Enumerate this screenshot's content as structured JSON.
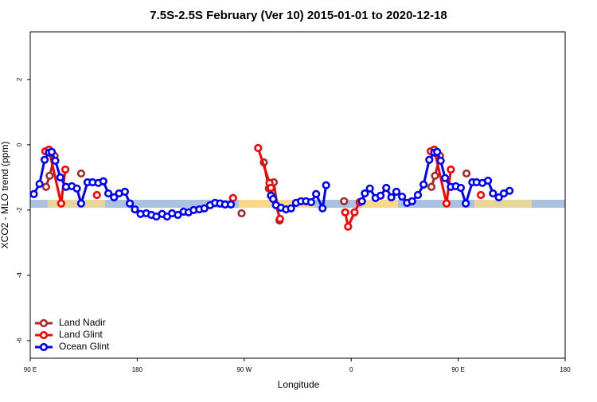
{
  "chart_data": {
    "type": "line",
    "title": "7.5S-2.5S February (Ver 10)   2015-01-01 to 2020-12-18",
    "xlabel": "Longitude",
    "ylabel": "XCO2 - MLO trend (ppm)",
    "xlim": [
      90,
      540
    ],
    "xticks": [
      {
        "value": 90,
        "label": "90 E"
      },
      {
        "value": 180,
        "label": "180"
      },
      {
        "value": 270,
        "label": "90 W"
      },
      {
        "value": 360,
        "label": "0"
      },
      {
        "value": 450,
        "label": "90 E"
      },
      {
        "value": 540,
        "label": "180"
      }
    ],
    "ylim": [
      -6.54,
      3.46
    ],
    "yticks": [
      -6,
      -4,
      -2,
      0,
      2
    ],
    "legend": "lower left",
    "series": [
      {
        "name": "Land Nadir",
        "color": "#a52a2a",
        "x": [
          103.3,
          106.3,
          110.5,
          null,
          132.8,
          null,
          267.8,
          null,
          286.5,
          290.7,
          294.9,
          299.7,
          null,
          354.0,
          null,
          427.5,
          430.5,
          434.7,
          null,
          457.0
        ],
        "values": [
          -1.29,
          -0.95,
          -0.34,
          null,
          -0.88,
          null,
          -2.1,
          null,
          -0.54,
          -1.34,
          -1.15,
          -2.32,
          null,
          -1.73,
          null,
          -1.29,
          -0.95,
          -0.34,
          null,
          -0.88
        ]
      },
      {
        "name": "Land Glint",
        "color": "#ff0000",
        "x": [
          102.7,
          105.7,
          116.0,
          119.5,
          null,
          146.1,
          null,
          260.6,
          null,
          281.7,
          291.3,
          292.5,
          300.1,
          null,
          355.0,
          357.4,
          362.8,
          367.1,
          null,
          426.9,
          429.9,
          440.2,
          443.8,
          null,
          469.1
        ],
        "values": [
          -0.2,
          -0.15,
          -1.8,
          -0.76,
          null,
          -1.54,
          null,
          -1.63,
          null,
          -0.1,
          -1.17,
          -1.32,
          -2.27,
          null,
          -2.07,
          -2.51,
          -2.07,
          -1.76,
          null,
          -0.2,
          -0.15,
          -1.8,
          -0.76,
          null,
          -1.54
        ]
      },
      {
        "name": "Ocean Glint",
        "color": "#0000ff",
        "x": [
          93.0,
          97.8,
          102.1,
          105.7,
          108.1,
          111.1,
          115.3,
          120.1,
          125.0,
          129.2,
          132.8,
          138.2,
          142.4,
          147.3,
          151.5,
          155.7,
          160.5,
          164.7,
          169.6,
          173.8,
          178.0,
          182.8,
          187.6,
          191.9,
          196.1,
          200.9,
          205.1,
          209.3,
          214.2,
          219.0,
          223.2,
          227.4,
          232.2,
          236.5,
          241.3,
          245.5,
          249.7,
          253.9,
          258.8,
          null,
          292.5,
          294.3,
          296.7,
          300.9,
          305.2,
          309.4,
          313.6,
          317.8,
          322.0,
          326.3,
          330.5,
          335.9,
          338.9,
          null,
          369.0,
          371.5,
          375.7,
          380.5,
          384.7,
          389.5,
          393.8,
          398.0,
          402.8,
          407.0,
          411.2,
          416.1,
          420.9,
          425.7,
          429.9,
          432.3,
          435.3,
          439.0,
          443.8,
          448.0,
          452.2,
          456.4,
          461.9,
          465.5,
          470.3,
          475.1,
          479.3,
          484.2,
          488.4,
          493.2
        ],
        "values": [
          -1.51,
          -1.2,
          -0.46,
          -0.24,
          -0.22,
          -0.49,
          -1.0,
          -1.29,
          -1.27,
          -1.34,
          -1.8,
          -1.15,
          -1.15,
          -1.17,
          -1.12,
          -1.49,
          -1.61,
          -1.49,
          -1.44,
          -1.8,
          -1.98,
          -2.12,
          -2.1,
          -2.15,
          -2.2,
          -2.12,
          -2.2,
          -2.1,
          -2.15,
          -2.05,
          -2.07,
          -2.0,
          -1.98,
          -1.95,
          -1.85,
          -1.78,
          -1.8,
          -1.83,
          -1.83,
          null,
          -1.56,
          -1.66,
          -1.85,
          -1.93,
          -1.98,
          -1.95,
          -1.78,
          -1.73,
          -1.73,
          -1.76,
          -1.51,
          -1.95,
          -1.24,
          null,
          -1.73,
          -1.49,
          -1.34,
          -1.63,
          -1.56,
          -1.32,
          -1.61,
          -1.44,
          -1.59,
          -1.78,
          -1.73,
          -1.54,
          -1.22,
          -0.46,
          -0.24,
          -0.22,
          -0.49,
          -1.02,
          -1.29,
          -1.27,
          -1.32,
          -1.8,
          -1.15,
          -1.15,
          -1.17,
          -1.1,
          -1.49,
          -1.61,
          -1.49,
          -1.41
        ]
      }
    ]
  }
}
